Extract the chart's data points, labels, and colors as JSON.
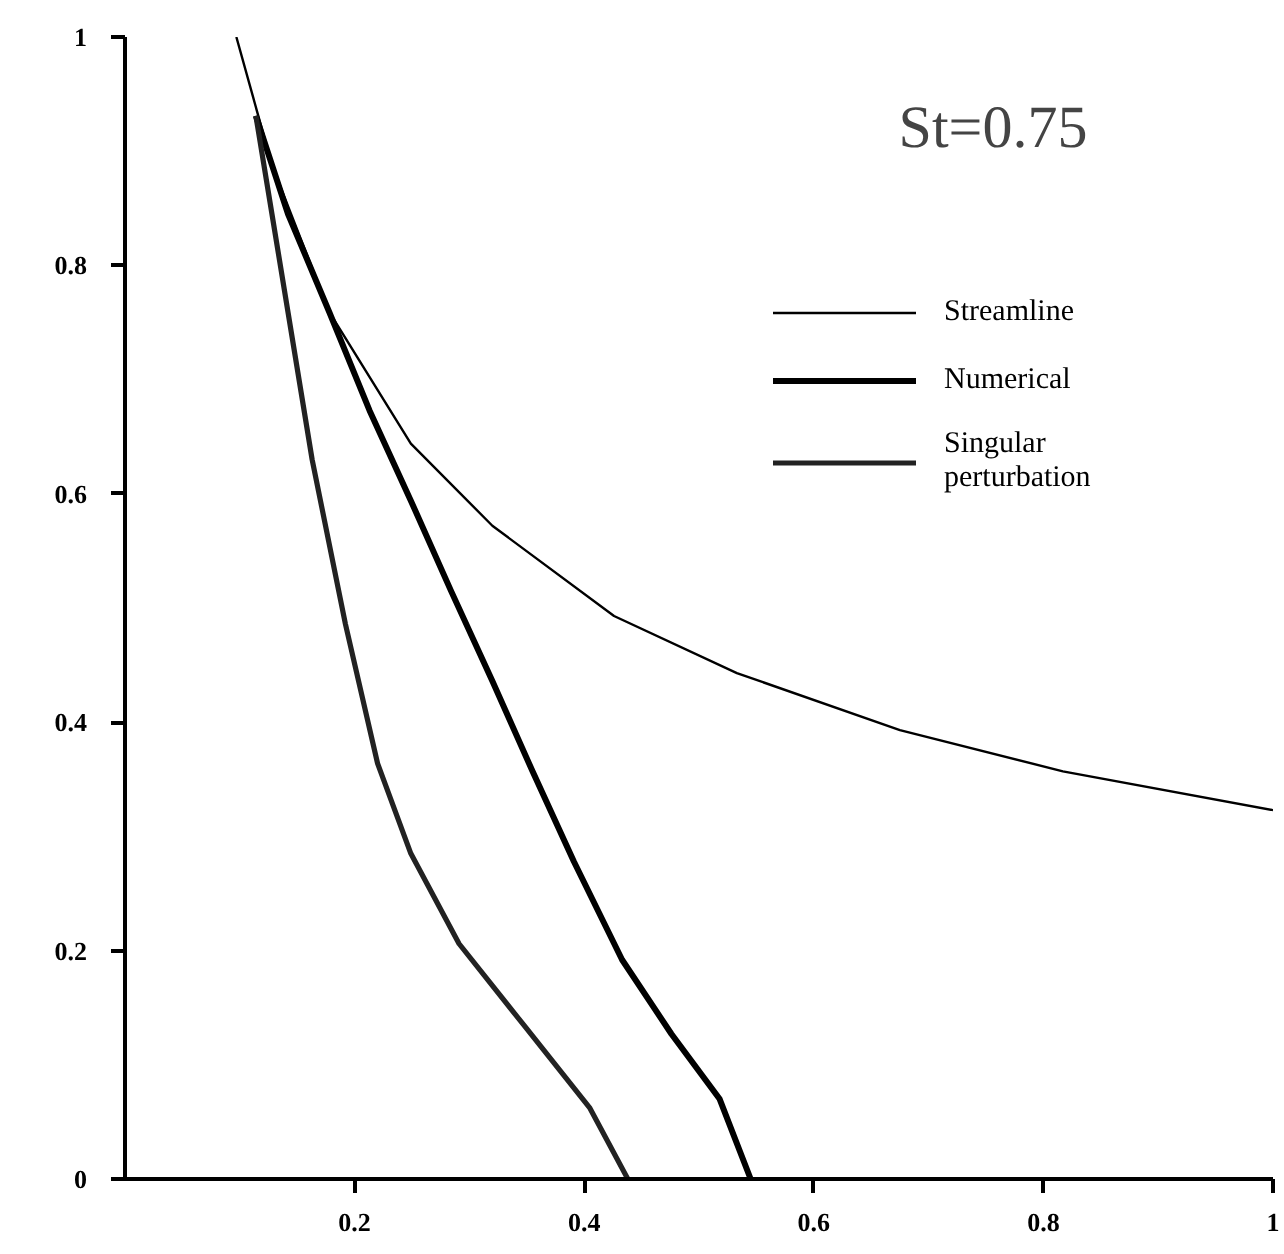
{
  "chart_data": {
    "type": "line",
    "title": "St=0.75",
    "xlim": [
      0,
      1
    ],
    "ylim": [
      0,
      1
    ],
    "xticks": [
      0.2,
      0.4,
      0.6,
      0.8,
      1
    ],
    "yticks": [
      0,
      0.2,
      0.4,
      0.6,
      0.8,
      1
    ],
    "grid": false,
    "legend": "top right",
    "marker": "none",
    "line_style": "solid",
    "series": [
      {
        "name": "Streamline",
        "color": "#000000",
        "x": [
          0.097,
          0.128,
          0.178,
          0.249,
          0.32,
          0.426,
          0.533,
          0.675,
          0.817,
          1.0
        ],
        "values": [
          1.0,
          0.888,
          0.759,
          0.644,
          0.572,
          0.493,
          0.443,
          0.393,
          0.357,
          0.323
        ]
      },
      {
        "name": "Numerical",
        "color": "#000000",
        "x": [
          0.114,
          0.142,
          0.178,
          0.213,
          0.249,
          0.284,
          0.32,
          0.355,
          0.391,
          0.433,
          0.476,
          0.518,
          0.545
        ],
        "values": [
          0.931,
          0.845,
          0.759,
          0.673,
          0.594,
          0.515,
          0.436,
          0.357,
          0.278,
          0.192,
          0.127,
          0.07,
          0.0
        ]
      },
      {
        "name": "Singular\nperturbation",
        "color": "#222222",
        "x": [
          0.114,
          0.128,
          0.142,
          0.163,
          0.192,
          0.22,
          0.249,
          0.291,
          0.348,
          0.405,
          0.438
        ],
        "values": [
          0.931,
          0.845,
          0.759,
          0.63,
          0.486,
          0.364,
          0.285,
          0.206,
          0.134,
          0.062,
          0.0
        ]
      }
    ]
  }
}
